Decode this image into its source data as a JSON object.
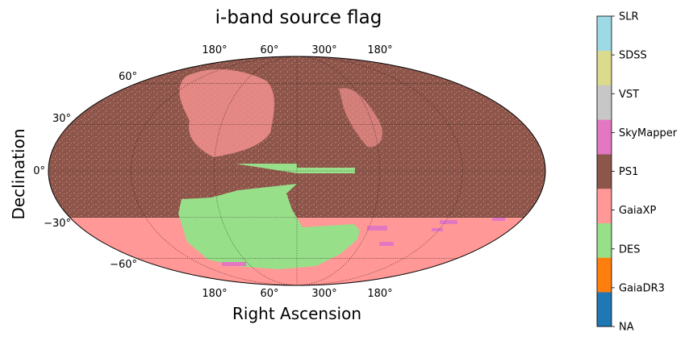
{
  "chart_data": {
    "type": "heatmap",
    "projection": "mollweide",
    "title": "i-band source flag",
    "xlabel": "Right Ascension",
    "ylabel": "Declination",
    "xticklabels_top": [
      "180°",
      "60°",
      "300°",
      "180°"
    ],
    "xticklabels_bottom": [
      "180°",
      "60°",
      "300°",
      "180°"
    ],
    "yticklabels": [
      "60°",
      "30°",
      "0°",
      "−30°",
      "−60°"
    ],
    "ytick_values": [
      60,
      30,
      0,
      -30,
      -60
    ],
    "grid": true,
    "categories": [
      "NA",
      "GaiaDR3",
      "DES",
      "GaiaXP",
      "PS1",
      "SkyMapper",
      "VST",
      "SDSS",
      "SLR"
    ],
    "category_colors": {
      "NA": "#1f77b4",
      "GaiaDR3": "#ff7f0e",
      "DES": "#98df8a",
      "GaiaXP": "#ff9896",
      "PS1": "#8c564b",
      "SkyMapper": "#e377c2",
      "VST": "#c7c7c7",
      "SDSS": "#dbdb8d",
      "SLR": "#9edae5"
    },
    "regions": [
      {
        "flag": "PS1",
        "dec_range": [
          -30,
          90
        ],
        "note": "dominant north of dec −30°, speckled with GaiaXP"
      },
      {
        "flag": "GaiaXP",
        "dec_range": [
          -90,
          -30
        ],
        "note": "fills south of dec −30°"
      },
      {
        "flag": "DES",
        "dec_range": [
          -65,
          5
        ],
        "note": "southern footprint plus equatorial stripe"
      },
      {
        "flag": "SkyMapper",
        "dec_range": [
          -70,
          -30
        ],
        "note": "scattered patches in the south"
      }
    ],
    "colorbar": {
      "orientation": "vertical",
      "labels": [
        "NA",
        "GaiaDR3",
        "DES",
        "GaiaXP",
        "PS1",
        "SkyMapper",
        "VST",
        "SDSS",
        "SLR"
      ]
    }
  }
}
